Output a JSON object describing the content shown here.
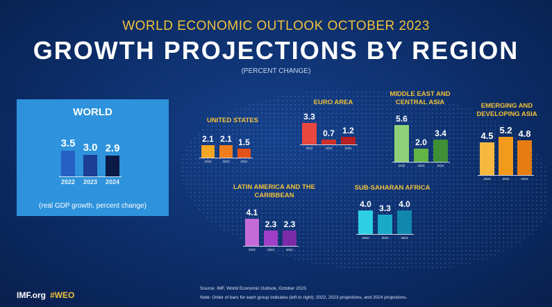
{
  "header": {
    "overline": "WORLD ECONOMIC OUTLOOK OCTOBER 2023",
    "title": "GROWTH PROJECTIONS BY REGION",
    "subtitle": "(PERCENT CHANGE)"
  },
  "world": {
    "note": "(real GDP growth, percent change)"
  },
  "footer": {
    "site": "IMF.org",
    "hashtag": "#WEO",
    "source": "Source: IMF, World Economic Outlook, October 2023.",
    "note": "Note:  Order of bars for each group indicates (left to right): 2022, 2023 projections, and 2024 projections."
  },
  "chart_data": [
    {
      "type": "bar",
      "title": "WORLD",
      "categories": [
        "2022",
        "2023",
        "2024"
      ],
      "values": [
        3.5,
        3.0,
        2.9
      ],
      "colors": [
        "#2560c4",
        "#1a3f93",
        "#0a1a45"
      ]
    },
    {
      "type": "bar",
      "title": "UNITED STATES",
      "categories": [
        "2022",
        "2023",
        "2024"
      ],
      "values": [
        2.1,
        2.1,
        1.5
      ],
      "colors": [
        "#f5a623",
        "#f07d1b",
        "#e2531c"
      ]
    },
    {
      "type": "bar",
      "title": "EURO AREA",
      "categories": [
        "2022",
        "2023",
        "2024"
      ],
      "values": [
        3.3,
        0.7,
        1.2
      ],
      "colors": [
        "#e8473f",
        "#cf2f2a",
        "#b81f22"
      ]
    },
    {
      "type": "bar",
      "title": "MIDDLE EAST AND CENTRAL ASIA",
      "categories": [
        "2022",
        "2023",
        "2024"
      ],
      "values": [
        5.6,
        2.0,
        3.4
      ],
      "colors": [
        "#8fd17a",
        "#63b347",
        "#3f8f37"
      ]
    },
    {
      "type": "bar",
      "title": "EMERGING AND DEVELOPING ASIA",
      "categories": [
        "2022",
        "2023",
        "2024"
      ],
      "values": [
        4.5,
        5.2,
        4.8
      ],
      "colors": [
        "#f7b840",
        "#f39a1c",
        "#e57d12"
      ]
    },
    {
      "type": "bar",
      "title": "LATIN AMERICA AND THE CARIBBEAN",
      "categories": [
        "2022",
        "2023",
        "2024"
      ],
      "values": [
        4.1,
        2.3,
        2.3
      ],
      "colors": [
        "#c56ad9",
        "#9f3fc8",
        "#7b2aa7"
      ]
    },
    {
      "type": "bar",
      "title": "SUB-SAHARAN AFRICA",
      "categories": [
        "2022",
        "2023",
        "2024"
      ],
      "values": [
        4.0,
        3.3,
        4.0
      ],
      "colors": [
        "#2ed0e3",
        "#1aa9c9",
        "#1187ad"
      ]
    }
  ]
}
